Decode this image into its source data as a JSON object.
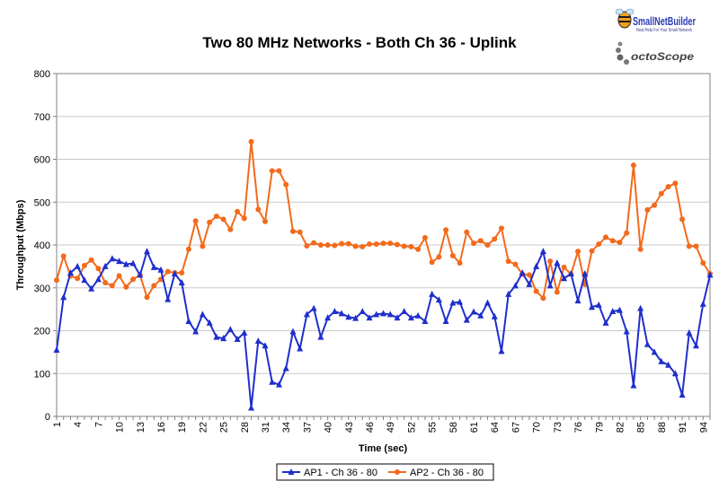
{
  "branding": {
    "logo1": "SmallNetBuilder",
    "logo1_tagline": "Real Help For Your Small Network",
    "logo2": "octoScope"
  },
  "colors": {
    "ap1": "#1f2fcc",
    "ap2": "#f26a1b",
    "logo_blue": "#2b3bb5",
    "logo_orange": "#f0a020"
  },
  "chart_data": {
    "type": "line",
    "title": "Two 80 MHz Networks - Both Ch 36 - Uplink",
    "xlabel": "Time (sec)",
    "ylabel": "Throughput (Mbps)",
    "ylim": [
      0,
      800
    ],
    "yticks": [
      0,
      100,
      200,
      300,
      400,
      500,
      600,
      700,
      800
    ],
    "xlim": [
      1,
      95
    ],
    "xticks": [
      1,
      4,
      7,
      10,
      13,
      16,
      19,
      22,
      25,
      28,
      31,
      34,
      37,
      40,
      43,
      46,
      49,
      52,
      55,
      58,
      61,
      64,
      67,
      70,
      73,
      76,
      79,
      82,
      85,
      88,
      91,
      94
    ],
    "grid": true,
    "legend_position": "bottom",
    "series": [
      {
        "name": "AP1 - Ch 36 - 80",
        "marker": "triangle",
        "values": [
          155,
          278,
          335,
          350,
          318,
          298,
          320,
          350,
          368,
          362,
          355,
          357,
          330,
          385,
          348,
          342,
          273,
          333,
          312,
          222,
          198,
          238,
          218,
          185,
          182,
          203,
          180,
          195,
          20,
          176,
          165,
          80,
          74,
          112,
          198,
          158,
          238,
          252,
          185,
          230,
          245,
          240,
          232,
          229,
          245,
          230,
          238,
          240,
          238,
          230,
          245,
          230,
          235,
          222,
          285,
          272,
          222,
          265,
          267,
          225,
          244,
          235,
          265,
          233,
          152,
          285,
          305,
          335,
          308,
          350,
          385,
          305,
          358,
          322,
          333,
          270,
          333,
          255,
          260,
          218,
          245,
          248,
          198,
          72,
          252,
          168,
          150,
          128,
          120,
          100,
          50,
          195,
          165,
          262,
          330
        ]
      },
      {
        "name": "AP2 - Ch 36 - 80",
        "marker": "circle",
        "values": [
          318,
          374,
          328,
          322,
          352,
          365,
          345,
          312,
          305,
          328,
          302,
          320,
          330,
          278,
          305,
          320,
          338,
          335,
          335,
          390,
          456,
          397,
          453,
          467,
          460,
          436,
          478,
          462,
          641,
          483,
          455,
          573,
          573,
          541,
          432,
          430,
          398,
          405,
          400,
          400,
          399,
          403,
          403,
          397,
          396,
          402,
          402,
          404,
          404,
          401,
          397,
          396,
          390,
          417,
          360,
          372,
          435,
          375,
          358,
          430,
          404,
          410,
          400,
          414,
          439,
          362,
          355,
          332,
          330,
          292,
          276,
          362,
          290,
          348,
          332,
          385,
          308,
          386,
          402,
          418,
          410,
          406,
          428,
          586,
          390,
          482,
          493,
          520,
          536,
          544,
          460,
          397,
          397,
          358,
          333
        ]
      }
    ]
  }
}
